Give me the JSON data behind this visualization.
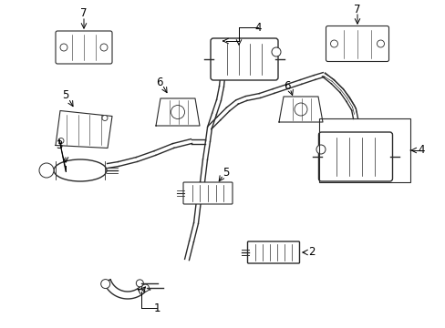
{
  "background_color": "#ffffff",
  "line_color": "#2a2a2a",
  "text_color": "#000000",
  "figsize": [
    4.89,
    3.6
  ],
  "dpi": 100,
  "parts": {
    "label_fontsize": 8.5,
    "arrow_lw": 0.7
  }
}
